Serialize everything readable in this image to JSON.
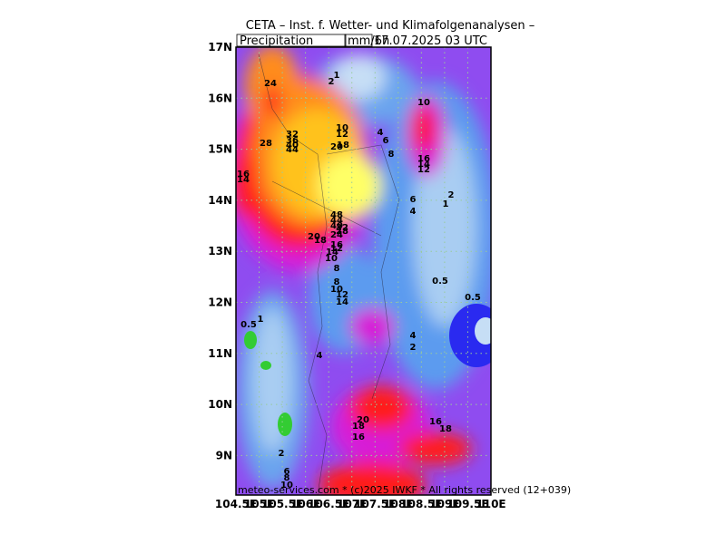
{
  "header": {
    "title": "CETA – Inst. f. Wetter- und Klimafolgenanalysen –",
    "variable": "Precipitation",
    "unit": "mm/6h",
    "valid_time": "17.07.2025 03 UTC"
  },
  "axes": {
    "y_labels": [
      "17N",
      "16N",
      "15N",
      "14N",
      "13N",
      "12N",
      "11N",
      "10N",
      "9N"
    ],
    "x_labels": [
      "104.5E",
      "105E",
      "105.5E",
      "106E",
      "106.5E",
      "107E",
      "107.5E",
      "108E",
      "108.5E",
      "109E",
      "109.5E",
      "110E"
    ]
  },
  "contour_labels": [
    "24",
    "2",
    "1",
    "10",
    "10",
    "12",
    "32",
    "36",
    "40",
    "44",
    "28",
    "20",
    "18",
    "4",
    "6",
    "8",
    "16",
    "14",
    "12",
    "16",
    "14",
    "6",
    "4",
    "2",
    "1",
    "48",
    "44",
    "40",
    "32",
    "28",
    "24",
    "20",
    "18",
    "16",
    "12",
    "14",
    "10",
    "8",
    "8",
    "10",
    "12",
    "14",
    "0.5",
    "0.5",
    "0.5",
    "1",
    "4",
    "2",
    "4",
    "20",
    "18",
    "16",
    "16",
    "18",
    "2",
    "6",
    "8",
    "10"
  ],
  "footer": "meteo-services.com * (c)2025 IWKF * All rights reserved (12+039)"
}
